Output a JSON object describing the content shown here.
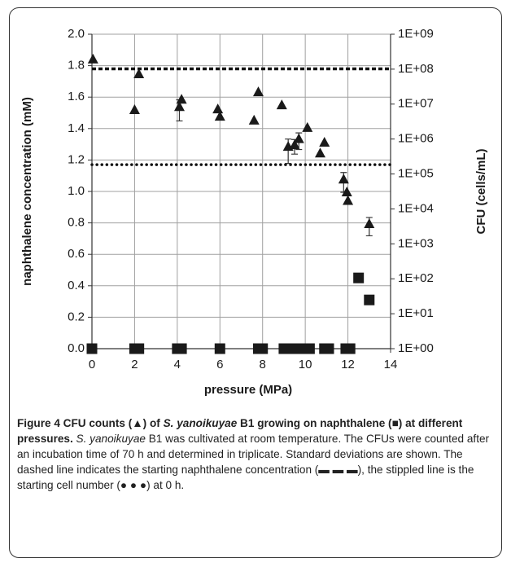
{
  "chart_data": {
    "type": "scatter",
    "xlabel": "pressure (MPa)",
    "ylabel": "naphthalene concentration (mM)",
    "y2label": "CFU (cells/mL)",
    "xlim": [
      0,
      14
    ],
    "xticks": [
      0,
      2,
      4,
      6,
      8,
      10,
      12,
      14
    ],
    "ylim": [
      0,
      2
    ],
    "yticks": [
      {
        "value": 0,
        "label": "0.0"
      },
      0.2,
      0.4,
      0.6,
      0.8,
      {
        "value": 1,
        "label": "1.0"
      },
      1.2,
      1.4,
      1.6,
      1.8,
      {
        "value": 2,
        "label": "2.0"
      }
    ],
    "y2lim": [
      1,
      1000000000
    ],
    "y2scale": "log",
    "y2ticks": [
      {
        "value": 1,
        "label": "1E+00"
      },
      {
        "value": 10,
        "label": "1E+01"
      },
      {
        "value": 100,
        "label": "1E+02"
      },
      {
        "value": 1000,
        "label": "1E+03"
      },
      {
        "value": 10000,
        "label": "1E+04"
      },
      {
        "value": 100000,
        "label": "1E+05"
      },
      {
        "value": 1000000,
        "label": "1E+06"
      },
      {
        "value": 10000000,
        "label": "1E+07"
      },
      {
        "value": 100000000,
        "label": "1E+08"
      },
      {
        "value": 1000000000,
        "label": "1E+09"
      }
    ],
    "grid": true,
    "series": [
      {
        "marker": "square",
        "axis": "y",
        "color": "#1a1a1a",
        "x": [
          0,
          2.0,
          2.2,
          4.0,
          4.2,
          6.0,
          7.8,
          8.0,
          9.0,
          9.3,
          9.6,
          9.9,
          10.2,
          10.9,
          11.1,
          11.9,
          12.1,
          12.5,
          13.0
        ],
        "values": [
          0,
          0,
          0,
          0,
          0,
          0,
          0,
          0,
          0,
          0,
          0,
          0,
          0,
          0,
          0,
          0,
          0,
          0.45,
          0.31
        ]
      },
      {
        "marker": "triangle",
        "axis": "y2",
        "color": "#1a1a1a",
        "x": [
          0.05,
          2.0,
          2.2,
          4.1,
          4.2,
          5.9,
          6.0,
          7.6,
          7.8,
          8.9,
          9.2,
          9.5,
          9.7,
          10.1,
          10.7,
          10.9,
          11.8,
          11.95,
          12.0,
          13.0
        ],
        "values": [
          190000000,
          6800000,
          72000000,
          8300000,
          13500000,
          7100000,
          4400000,
          3400000,
          22000000,
          9300000,
          600000,
          670000,
          1000000,
          2100000,
          390000,
          790000,
          70000,
          30000,
          17000,
          3700
        ],
        "errors": [
          null,
          null,
          null,
          5000000,
          null,
          null,
          null,
          null,
          null,
          null,
          400000,
          300000,
          500000,
          null,
          null,
          null,
          40000,
          null,
          null,
          2000
        ]
      }
    ],
    "reference_lines": [
      {
        "axis": "y",
        "value": 1.78,
        "style": "dashed"
      },
      {
        "axis": "y2",
        "value": 185000,
        "style": "dotted"
      }
    ]
  },
  "caption": {
    "runs": [
      {
        "text": "Figure 4 CFU counts (▲) of ",
        "style": "bold"
      },
      {
        "text": "S. yanoikuyae",
        "style": "bold-italic"
      },
      {
        "text": " B1 growing on naphthalene (■) at different pressures.",
        "style": "bold"
      },
      {
        "text": " ",
        "style": "normal"
      },
      {
        "text": "S. yanoikuyae",
        "style": "italic"
      },
      {
        "text": " B1 was cultivated at room temperature. The CFUs were counted after an incubation time of 70 h and determined in triplicate. Standard deviations are shown. The dashed line indicates the starting naphthalene concentration (▬ ▬ ▬), the stippled line is the starting cell number (● ● ●) at 0 h.",
        "style": "normal"
      }
    ]
  }
}
